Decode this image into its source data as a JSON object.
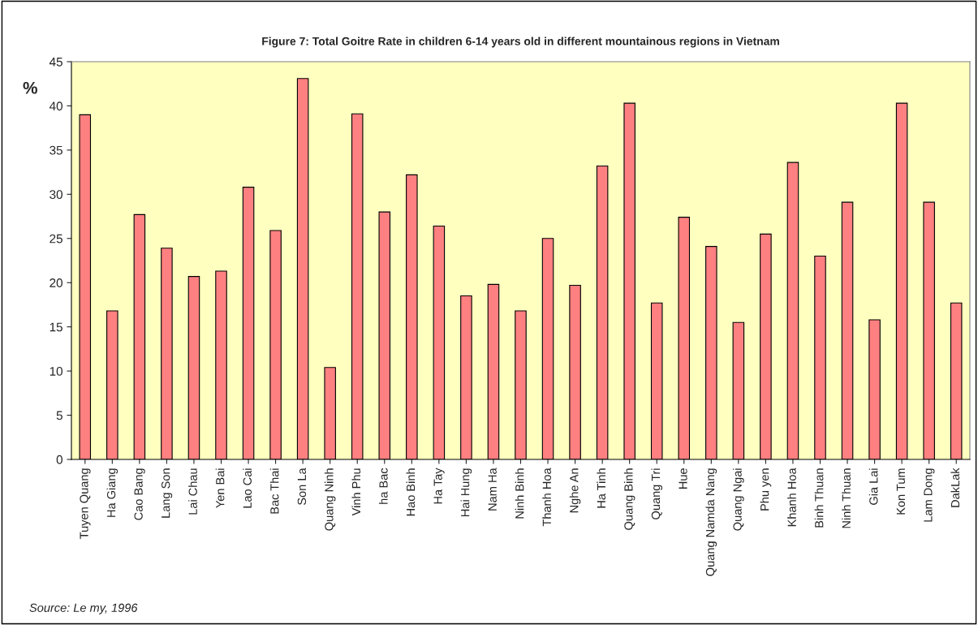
{
  "chart_data": {
    "type": "bar",
    "title": "Figure 7: Total Goitre Rate in children 6-14 years old in different mountainous regions in Vietnam",
    "ylabel": "%",
    "categories": [
      "Tuyen Quang",
      "Ha Giang",
      "Cao Bang",
      "Lang Son",
      "Lai Chau",
      "Yen Bai",
      "Lao Cai",
      "Bac Thai",
      "Son La",
      "Quang Ninh",
      "Vinh Phu",
      "ha Bac",
      "Hao Binh",
      "Ha Tay",
      "Hai Hung",
      "Nam Ha",
      "Ninh Binh",
      "Thanh Hoa",
      "Nghe An",
      "Ha Tinh",
      "Quang Binh",
      "Quang Tri",
      "Hue",
      "Quang Namda Nang",
      "Quang Ngai",
      "Phu yen",
      "Khanh Hoa",
      "Binh Thuan",
      "Ninh Thuan",
      "Gia Lai",
      "Kon Tum",
      "Lam Dong",
      "DakLak"
    ],
    "values": [
      39,
      16.8,
      27.7,
      23.9,
      20.7,
      21.3,
      30.8,
      25.9,
      43.1,
      10.4,
      39.1,
      28,
      32.2,
      26.4,
      18.5,
      19.8,
      16.8,
      25,
      19.7,
      33.2,
      40.3,
      17.7,
      27.4,
      24.1,
      15.5,
      25.5,
      33.6,
      23,
      29.1,
      15.8,
      40.3,
      29.1,
      17.7
    ],
    "color": "#ff8080",
    "ylim": [
      0,
      45
    ],
    "yticks": [
      0,
      5,
      10,
      15,
      20,
      25,
      30,
      35,
      40,
      45
    ],
    "grid": false,
    "legend": false,
    "annotations": [
      "Source: Le my, 1996"
    ]
  }
}
